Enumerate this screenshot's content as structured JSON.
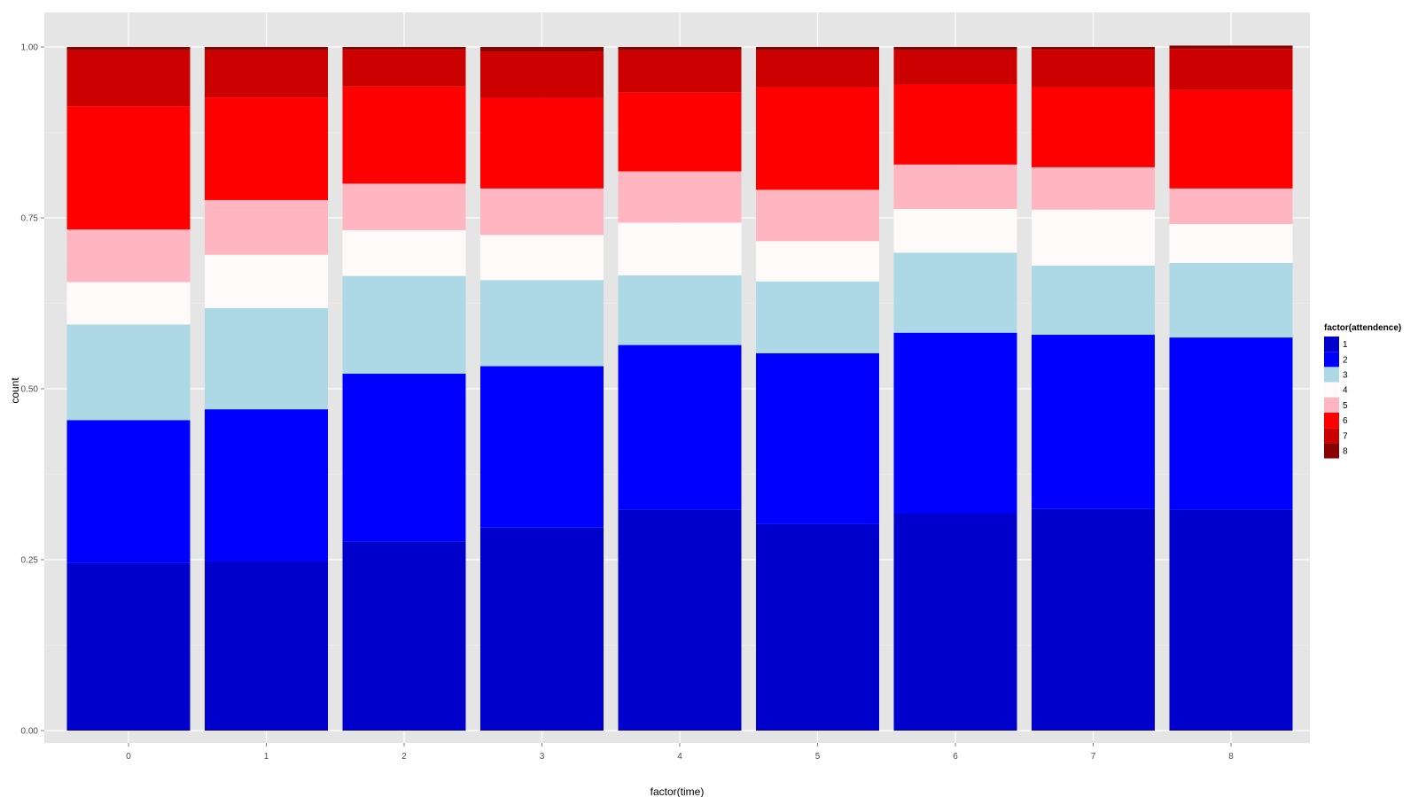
{
  "chart_data": {
    "type": "bar",
    "stacked": true,
    "xlabel": "factor(time)",
    "ylabel": "count",
    "ylim": [
      0,
      1
    ],
    "y_ticks": [
      "0.00",
      "0.25",
      "0.50",
      "0.75",
      "1.00"
    ],
    "grid": true,
    "legend_position": "right",
    "legend_title": "factor(attendence)",
    "categories": [
      "0",
      "1",
      "2",
      "3",
      "4",
      "5",
      "6",
      "7",
      "8"
    ],
    "series": [
      {
        "name": "1",
        "color": "#0000CD",
        "values": [
          0.245,
          0.248,
          0.277,
          0.297,
          0.323,
          0.302,
          0.318,
          0.324,
          0.323
        ]
      },
      {
        "name": "2",
        "color": "#0000FF",
        "values": [
          0.209,
          0.222,
          0.245,
          0.236,
          0.241,
          0.25,
          0.264,
          0.255,
          0.252
        ]
      },
      {
        "name": "3",
        "color": "#ADD8E6",
        "values": [
          0.14,
          0.148,
          0.143,
          0.126,
          0.102,
          0.105,
          0.117,
          0.101,
          0.109
        ]
      },
      {
        "name": "4",
        "color": "#FFFAFA",
        "values": [
          0.062,
          0.078,
          0.067,
          0.066,
          0.077,
          0.059,
          0.064,
          0.082,
          0.057
        ]
      },
      {
        "name": "5",
        "color": "#FFB6C1",
        "values": [
          0.077,
          0.08,
          0.068,
          0.068,
          0.075,
          0.075,
          0.065,
          0.062,
          0.052
        ]
      },
      {
        "name": "6",
        "color": "#FF0000",
        "values": [
          0.18,
          0.15,
          0.142,
          0.132,
          0.115,
          0.15,
          0.117,
          0.117,
          0.144
        ]
      },
      {
        "name": "7",
        "color": "#CD0000",
        "values": [
          0.082,
          0.069,
          0.054,
          0.068,
          0.062,
          0.054,
          0.05,
          0.055,
          0.06
        ]
      },
      {
        "name": "8",
        "color": "#8B0000",
        "values": [
          0.005,
          0.005,
          0.004,
          0.007,
          0.005,
          0.005,
          0.005,
          0.004,
          0.005
        ]
      }
    ]
  }
}
